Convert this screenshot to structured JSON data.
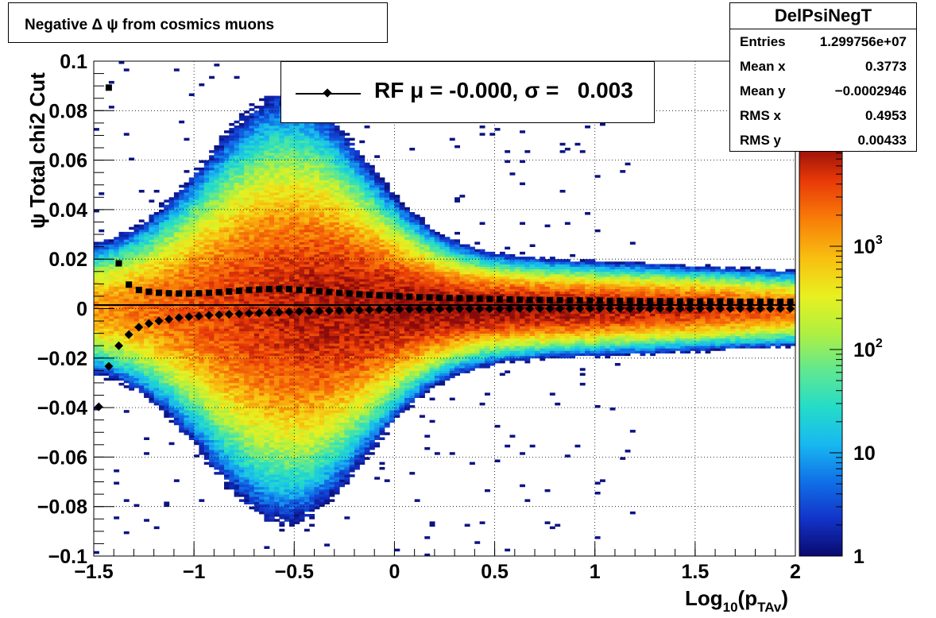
{
  "title": "Negative Δ ψ from cosmics muons",
  "stats": {
    "name": "DelPsiNegT",
    "rows": [
      {
        "label": "Entries",
        "value": "1.299756e+07"
      },
      {
        "label": "Mean x",
        "value": "0.3773"
      },
      {
        "label": "Mean y",
        "value": "−0.0002946"
      },
      {
        "label": "RMS x",
        "value": "0.4953"
      },
      {
        "label": "RMS y",
        "value": "0.00433"
      }
    ]
  },
  "legend": {
    "label": "RF μ = -0.000, σ =   0.003"
  },
  "chart_data": {
    "type": "heatmap",
    "xlabel": "Log10(pTAv)",
    "xlabel_parts": {
      "main": "Log",
      "sub1": "10",
      "open": "(p",
      "sub2": "TAv",
      "close": ")"
    },
    "ylabel": "ψ Total chi2 Cut",
    "xlim": [
      -1.5,
      2
    ],
    "ylim": [
      -0.1,
      0.1
    ],
    "x_ticks": [
      {
        "v": -1.5,
        "label": "−1.5"
      },
      {
        "v": -1,
        "label": "−1"
      },
      {
        "v": -0.5,
        "label": "−0.5"
      },
      {
        "v": 0,
        "label": "0"
      },
      {
        "v": 0.5,
        "label": "0.5"
      },
      {
        "v": 1,
        "label": "1"
      },
      {
        "v": 1.5,
        "label": "1.5"
      },
      {
        "v": 2,
        "label": "2"
      }
    ],
    "y_ticks": [
      {
        "v": -0.1,
        "label": "−0.1"
      },
      {
        "v": -0.08,
        "label": "−0.08"
      },
      {
        "v": -0.06,
        "label": "−0.06"
      },
      {
        "v": -0.04,
        "label": "−0.04"
      },
      {
        "v": -0.02,
        "label": "−0.02"
      },
      {
        "v": 0,
        "label": "0"
      },
      {
        "v": 0.02,
        "label": "0.02"
      },
      {
        "v": 0.04,
        "label": "0.04"
      },
      {
        "v": 0.06,
        "label": "0.06"
      },
      {
        "v": 0.08,
        "label": "0.08"
      },
      {
        "v": 0.1,
        "label": "0.1"
      }
    ],
    "colorbar": {
      "scale": "log",
      "range": [
        1,
        10000
      ],
      "labels": [
        {
          "v": 1,
          "base": "1",
          "exp": ""
        },
        {
          "v": 10,
          "base": "10",
          "exp": ""
        },
        {
          "v": 100,
          "base": "10",
          "exp": "2"
        },
        {
          "v": 1000,
          "base": "10",
          "exp": "3"
        }
      ],
      "palette": [
        "#0a0a6e",
        "#1233c8",
        "#1070e8",
        "#18b8f0",
        "#24dcc8",
        "#60e890",
        "#b0f040",
        "#e8f020",
        "#f8c010",
        "#f87a08",
        "#e83808",
        "#8a0a0a"
      ]
    },
    "grid": true,
    "series": [
      {
        "name": "mean",
        "marker": "diamond",
        "points": [
          [
            -1.475,
            -0.0397
          ],
          [
            -1.425,
            -0.0233
          ],
          [
            -1.375,
            -0.015
          ],
          [
            -1.325,
            -0.0105
          ],
          [
            -1.275,
            -0.0075
          ],
          [
            -1.225,
            -0.006
          ],
          [
            -1.175,
            -0.005
          ],
          [
            -1.125,
            -0.0043
          ],
          [
            -1.075,
            -0.0037
          ],
          [
            -1.025,
            -0.0033
          ],
          [
            -0.975,
            -0.003
          ],
          [
            -0.925,
            -0.0027
          ],
          [
            -0.875,
            -0.0025
          ],
          [
            -0.825,
            -0.0023
          ],
          [
            -0.775,
            -0.0021
          ],
          [
            -0.725,
            -0.0019
          ],
          [
            -0.675,
            -0.0018
          ],
          [
            -0.625,
            -0.0016
          ],
          [
            -0.575,
            -0.0015
          ],
          [
            -0.525,
            -0.0013
          ],
          [
            -0.475,
            -0.0012
          ],
          [
            -0.425,
            -0.0011
          ],
          [
            -0.375,
            -0.001
          ],
          [
            -0.325,
            -0.0009
          ],
          [
            -0.275,
            -0.0008
          ],
          [
            -0.225,
            -0.0007
          ],
          [
            -0.175,
            -0.0006
          ],
          [
            -0.125,
            -0.0005
          ],
          [
            -0.075,
            -0.0004
          ],
          [
            -0.025,
            -0.0004
          ],
          [
            0.025,
            -0.0003
          ],
          [
            0.075,
            -0.0003
          ],
          [
            0.125,
            -0.0002
          ],
          [
            0.175,
            -0.0002
          ],
          [
            0.225,
            -0.0002
          ],
          [
            0.275,
            -0.0002
          ],
          [
            0.325,
            -0.0001
          ],
          [
            0.375,
            -0.0001
          ],
          [
            0.425,
            -0.0001
          ],
          [
            0.475,
            -0.0001
          ],
          [
            0.525,
            -0.0001
          ],
          [
            0.575,
            0.0
          ],
          [
            0.625,
            0.0
          ],
          [
            0.675,
            0.0
          ],
          [
            0.725,
            0.0
          ],
          [
            0.775,
            0.0
          ],
          [
            0.825,
            0.0
          ],
          [
            0.875,
            0.0
          ],
          [
            0.925,
            0.0
          ],
          [
            0.975,
            0.0
          ],
          [
            1.025,
            0.0
          ],
          [
            1.075,
            0.0
          ],
          [
            1.125,
            0.0
          ],
          [
            1.175,
            0.0
          ],
          [
            1.225,
            0.0
          ],
          [
            1.275,
            0.0
          ],
          [
            1.325,
            0.0
          ],
          [
            1.375,
            0.0
          ],
          [
            1.425,
            0.0
          ],
          [
            1.475,
            0.0
          ],
          [
            1.525,
            0.0
          ],
          [
            1.575,
            0.0
          ],
          [
            1.625,
            0.0
          ],
          [
            1.675,
            0.0
          ],
          [
            1.725,
            0.0
          ],
          [
            1.775,
            0.0
          ],
          [
            1.825,
            0.0
          ],
          [
            1.875,
            0.0
          ],
          [
            1.925,
            0.0
          ],
          [
            1.975,
            0.0
          ]
        ]
      },
      {
        "name": "sigma",
        "marker": "square",
        "points": [
          [
            -1.425,
            0.0893
          ],
          [
            -1.375,
            0.0183
          ],
          [
            -1.325,
            0.0097
          ],
          [
            -1.275,
            0.0075
          ],
          [
            -1.225,
            0.0068
          ],
          [
            -1.175,
            0.0064
          ],
          [
            -1.125,
            0.0062
          ],
          [
            -1.075,
            0.0061
          ],
          [
            -1.025,
            0.0061
          ],
          [
            -0.975,
            0.0062
          ],
          [
            -0.925,
            0.0064
          ],
          [
            -0.875,
            0.0066
          ],
          [
            -0.825,
            0.0069
          ],
          [
            -0.775,
            0.0072
          ],
          [
            -0.725,
            0.0075
          ],
          [
            -0.675,
            0.0077
          ],
          [
            -0.625,
            0.0079
          ],
          [
            -0.575,
            0.008
          ],
          [
            -0.525,
            0.0079
          ],
          [
            -0.475,
            0.0076
          ],
          [
            -0.425,
            0.0073
          ],
          [
            -0.375,
            0.007
          ],
          [
            -0.325,
            0.0067
          ],
          [
            -0.275,
            0.0064
          ],
          [
            -0.225,
            0.0061
          ],
          [
            -0.175,
            0.0058
          ],
          [
            -0.125,
            0.0056
          ],
          [
            -0.075,
            0.0054
          ],
          [
            -0.025,
            0.0052
          ],
          [
            0.025,
            0.005
          ],
          [
            0.075,
            0.0048
          ],
          [
            0.125,
            0.0046
          ],
          [
            0.175,
            0.0045
          ],
          [
            0.225,
            0.0044
          ],
          [
            0.275,
            0.0043
          ],
          [
            0.325,
            0.0042
          ],
          [
            0.375,
            0.0041
          ],
          [
            0.425,
            0.004
          ],
          [
            0.475,
            0.0039
          ],
          [
            0.525,
            0.0038
          ],
          [
            0.575,
            0.0037
          ],
          [
            0.625,
            0.0036
          ],
          [
            0.675,
            0.0035
          ],
          [
            0.725,
            0.0035
          ],
          [
            0.775,
            0.0034
          ],
          [
            0.825,
            0.0034
          ],
          [
            0.875,
            0.0033
          ],
          [
            0.925,
            0.0033
          ],
          [
            0.975,
            0.0032
          ],
          [
            1.025,
            0.0032
          ],
          [
            1.075,
            0.0031
          ],
          [
            1.125,
            0.0031
          ],
          [
            1.175,
            0.0031
          ],
          [
            1.225,
            0.003
          ],
          [
            1.275,
            0.003
          ],
          [
            1.325,
            0.003
          ],
          [
            1.375,
            0.003
          ],
          [
            1.425,
            0.0029
          ],
          [
            1.475,
            0.0029
          ],
          [
            1.525,
            0.0029
          ],
          [
            1.575,
            0.0029
          ],
          [
            1.625,
            0.0029
          ],
          [
            1.675,
            0.0029
          ],
          [
            1.725,
            0.0028
          ],
          [
            1.775,
            0.0028
          ],
          [
            1.825,
            0.0028
          ],
          [
            1.875,
            0.0028
          ],
          [
            1.925,
            0.0028
          ],
          [
            1.975,
            0.0028
          ]
        ]
      }
    ]
  }
}
